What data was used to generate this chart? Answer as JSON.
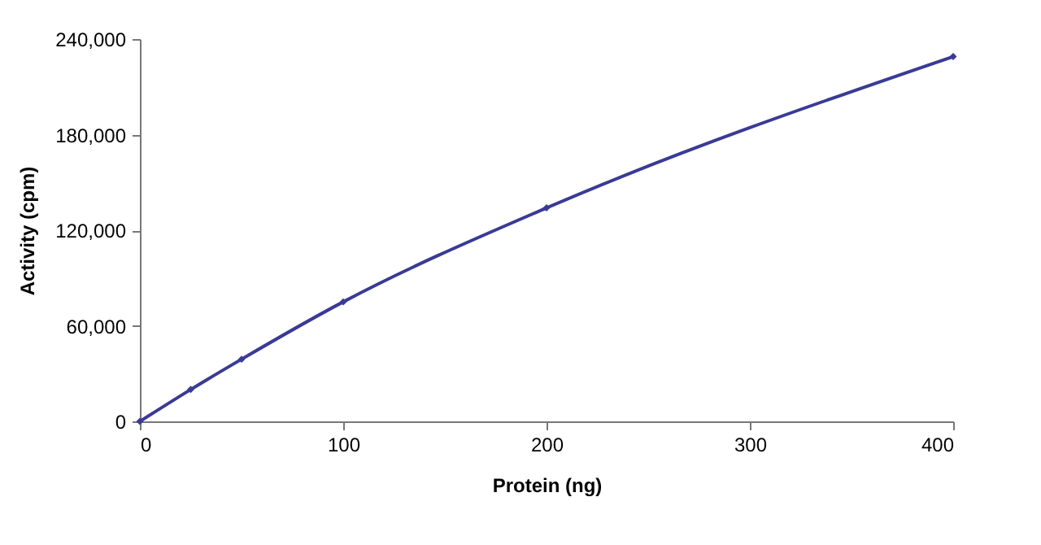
{
  "chart_data": {
    "type": "line",
    "xlabel": "Protein (ng)",
    "ylabel": "Activity (cpm)",
    "x": [
      0,
      25,
      50,
      100,
      200,
      400
    ],
    "series": [
      {
        "color": "#3a3a96",
        "values": [
          0,
          20000,
          39000,
          75000,
          134000,
          229000
        ]
      }
    ],
    "xlim": [
      0,
      400
    ],
    "xticks": [
      0,
      100,
      200,
      300,
      400
    ],
    "ylim": [
      0,
      240000
    ],
    "yticks": [
      {
        "value": 0,
        "label": "0"
      },
      {
        "value": 60000,
        "label": "60,000"
      },
      {
        "value": 120000,
        "label": "120,000"
      },
      {
        "value": 180000,
        "label": "180,000"
      },
      {
        "value": 240000,
        "label": "240,000"
      }
    ],
    "grid": false,
    "marker": "diamond",
    "line_style": "solid"
  }
}
